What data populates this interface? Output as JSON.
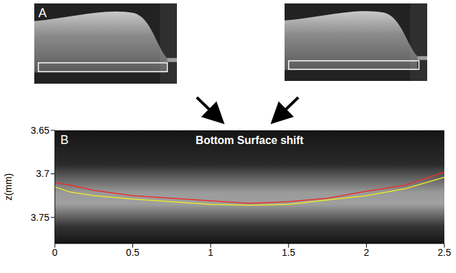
{
  "panel_labels": [
    "A",
    "B"
  ],
  "chart_data": {
    "type": "line",
    "title": "Bottom Surface shift",
    "ylabel": "z(mm)",
    "x": [
      0,
      0.1,
      0.25,
      0.5,
      0.75,
      1,
      1.25,
      1.5,
      1.75,
      2,
      2.25,
      2.5
    ],
    "series": [
      {
        "color": "#e8302c",
        "values": [
          3.71,
          3.713,
          3.719,
          3.725,
          3.728,
          3.731,
          3.734,
          3.732,
          3.728,
          3.72,
          3.713,
          3.698
        ]
      },
      {
        "color": "#e6e62e",
        "values": [
          3.715,
          3.721,
          3.725,
          3.729,
          3.732,
          3.735,
          3.736,
          3.735,
          3.73,
          3.725,
          3.717,
          3.704
        ]
      }
    ],
    "xlim": [
      0,
      2.5
    ],
    "xticks": [
      0,
      0.5,
      1,
      1.5,
      2,
      2.5
    ],
    "ylim": [
      3.65,
      3.78
    ],
    "yticks": [
      3.65,
      3.7,
      3.75
    ],
    "grid": false
  }
}
